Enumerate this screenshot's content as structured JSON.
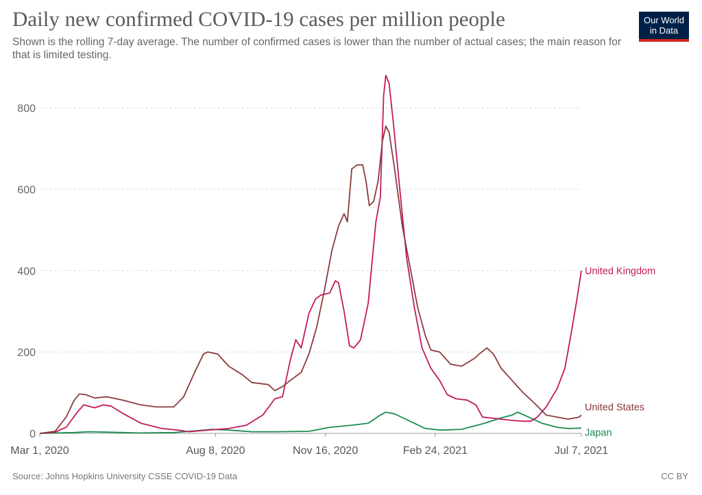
{
  "header": {
    "title": "Daily new confirmed COVID-19 cases per million people",
    "subtitle": "Shown is the rolling 7-day average. The number of confirmed cases is lower than the number of actual cases; the main reason for that is limited testing."
  },
  "logo": {
    "line1": "Our World",
    "line2": "in Data"
  },
  "footer": {
    "source": "Source: Johns Hopkins University CSSE COVID-19 Data",
    "license": "CC BY"
  },
  "chart_data": {
    "type": "line",
    "title": "Daily new confirmed COVID-19 cases per million people",
    "xlabel": "",
    "ylabel": "",
    "xlim": [
      "2020-03-01",
      "2021-07-07"
    ],
    "ylim": [
      0,
      880
    ],
    "y_ticks": [
      0,
      200,
      400,
      600,
      800
    ],
    "x_ticks": [
      "2020-03-01",
      "2020-08-08",
      "2020-11-16",
      "2021-02-24",
      "2021-07-07"
    ],
    "x_tick_labels": [
      "Mar 1, 2020",
      "Aug 8, 2020",
      "Nov 16, 2020",
      "Feb 24, 2021",
      "Jul 7, 2021"
    ],
    "grid": "horizontal dashed",
    "legend": "labels at line ends",
    "series": [
      {
        "name": "United Kingdom",
        "color": "#c2185b",
        "points": [
          [
            "2020-03-01",
            0
          ],
          [
            "2020-03-15",
            3
          ],
          [
            "2020-03-25",
            15
          ],
          [
            "2020-04-05",
            55
          ],
          [
            "2020-04-10",
            70
          ],
          [
            "2020-04-20",
            63
          ],
          [
            "2020-04-28",
            70
          ],
          [
            "2020-05-05",
            67
          ],
          [
            "2020-05-15",
            50
          ],
          [
            "2020-06-01",
            25
          ],
          [
            "2020-06-20",
            12
          ],
          [
            "2020-07-05",
            8
          ],
          [
            "2020-07-15",
            4
          ],
          [
            "2020-08-01",
            8
          ],
          [
            "2020-08-20",
            12
          ],
          [
            "2020-09-05",
            20
          ],
          [
            "2020-09-20",
            45
          ],
          [
            "2020-10-01",
            85
          ],
          [
            "2020-10-08",
            90
          ],
          [
            "2020-10-15",
            180
          ],
          [
            "2020-10-20",
            230
          ],
          [
            "2020-10-25",
            210
          ],
          [
            "2020-11-01",
            295
          ],
          [
            "2020-11-07",
            330
          ],
          [
            "2020-11-12",
            340
          ],
          [
            "2020-11-20",
            345
          ],
          [
            "2020-11-25",
            375
          ],
          [
            "2020-11-28",
            370
          ],
          [
            "2020-12-03",
            300
          ],
          [
            "2020-12-08",
            215
          ],
          [
            "2020-12-12",
            210
          ],
          [
            "2020-12-18",
            230
          ],
          [
            "2020-12-25",
            320
          ],
          [
            "2021-01-01",
            520
          ],
          [
            "2021-01-05",
            580
          ],
          [
            "2021-01-08",
            830
          ],
          [
            "2021-01-10",
            880
          ],
          [
            "2021-01-13",
            860
          ],
          [
            "2021-01-17",
            760
          ],
          [
            "2021-01-22",
            620
          ],
          [
            "2021-01-29",
            430
          ],
          [
            "2021-02-05",
            310
          ],
          [
            "2021-02-12",
            210
          ],
          [
            "2021-02-20",
            160
          ],
          [
            "2021-02-28",
            130
          ],
          [
            "2021-03-07",
            95
          ],
          [
            "2021-03-15",
            85
          ],
          [
            "2021-03-25",
            82
          ],
          [
            "2021-04-02",
            70
          ],
          [
            "2021-04-08",
            40
          ],
          [
            "2021-04-15",
            38
          ],
          [
            "2021-04-25",
            35
          ],
          [
            "2021-05-05",
            32
          ],
          [
            "2021-05-15",
            30
          ],
          [
            "2021-05-22",
            30
          ],
          [
            "2021-05-28",
            40
          ],
          [
            "2021-06-05",
            65
          ],
          [
            "2021-06-15",
            110
          ],
          [
            "2021-06-22",
            160
          ],
          [
            "2021-06-28",
            250
          ],
          [
            "2021-07-03",
            330
          ],
          [
            "2021-07-07",
            400
          ]
        ]
      },
      {
        "name": "United States",
        "color": "#8b3a3a",
        "points": [
          [
            "2020-03-01",
            0
          ],
          [
            "2020-03-15",
            5
          ],
          [
            "2020-03-25",
            40
          ],
          [
            "2020-04-01",
            80
          ],
          [
            "2020-04-06",
            97
          ],
          [
            "2020-04-12",
            95
          ],
          [
            "2020-04-20",
            87
          ],
          [
            "2020-05-01",
            90
          ],
          [
            "2020-05-15",
            82
          ],
          [
            "2020-06-01",
            70
          ],
          [
            "2020-06-15",
            65
          ],
          [
            "2020-07-01",
            65
          ],
          [
            "2020-07-10",
            90
          ],
          [
            "2020-07-20",
            150
          ],
          [
            "2020-07-28",
            195
          ],
          [
            "2020-08-01",
            200
          ],
          [
            "2020-08-10",
            195
          ],
          [
            "2020-08-20",
            165
          ],
          [
            "2020-09-01",
            145
          ],
          [
            "2020-09-10",
            125
          ],
          [
            "2020-09-25",
            120
          ],
          [
            "2020-10-01",
            105
          ],
          [
            "2020-10-08",
            115
          ],
          [
            "2020-10-15",
            130
          ],
          [
            "2020-10-25",
            150
          ],
          [
            "2020-11-01",
            195
          ],
          [
            "2020-11-08",
            260
          ],
          [
            "2020-11-15",
            350
          ],
          [
            "2020-11-22",
            450
          ],
          [
            "2020-11-28",
            510
          ],
          [
            "2020-12-03",
            540
          ],
          [
            "2020-12-06",
            520
          ],
          [
            "2020-12-10",
            650
          ],
          [
            "2020-12-15",
            660
          ],
          [
            "2020-12-20",
            660
          ],
          [
            "2020-12-23",
            620
          ],
          [
            "2020-12-26",
            560
          ],
          [
            "2020-12-30",
            570
          ],
          [
            "2021-01-03",
            620
          ],
          [
            "2021-01-07",
            720
          ],
          [
            "2021-01-10",
            755
          ],
          [
            "2021-01-13",
            740
          ],
          [
            "2021-01-18",
            650
          ],
          [
            "2021-01-25",
            510
          ],
          [
            "2021-02-01",
            410
          ],
          [
            "2021-02-08",
            310
          ],
          [
            "2021-02-15",
            240
          ],
          [
            "2021-02-20",
            205
          ],
          [
            "2021-02-28",
            200
          ],
          [
            "2021-03-10",
            170
          ],
          [
            "2021-03-20",
            165
          ],
          [
            "2021-04-01",
            185
          ],
          [
            "2021-04-05",
            195
          ],
          [
            "2021-04-12",
            210
          ],
          [
            "2021-04-18",
            195
          ],
          [
            "2021-04-25",
            160
          ],
          [
            "2021-05-05",
            130
          ],
          [
            "2021-05-15",
            100
          ],
          [
            "2021-05-25",
            75
          ],
          [
            "2021-06-05",
            45
          ],
          [
            "2021-06-15",
            40
          ],
          [
            "2021-06-25",
            35
          ],
          [
            "2021-07-05",
            40
          ],
          [
            "2021-07-07",
            45
          ]
        ]
      },
      {
        "name": "Japan",
        "color": "#1a8a50",
        "points": [
          [
            "2020-03-01",
            0
          ],
          [
            "2020-04-01",
            2
          ],
          [
            "2020-04-15",
            4
          ],
          [
            "2020-05-01",
            3
          ],
          [
            "2020-06-01",
            1
          ],
          [
            "2020-07-01",
            2
          ],
          [
            "2020-07-20",
            6
          ],
          [
            "2020-08-05",
            10
          ],
          [
            "2020-08-20",
            8
          ],
          [
            "2020-09-10",
            4
          ],
          [
            "2020-10-01",
            4
          ],
          [
            "2020-11-01",
            5
          ],
          [
            "2020-11-20",
            15
          ],
          [
            "2020-12-10",
            20
          ],
          [
            "2020-12-25",
            25
          ],
          [
            "2021-01-05",
            45
          ],
          [
            "2021-01-10",
            52
          ],
          [
            "2021-01-18",
            48
          ],
          [
            "2021-02-01",
            30
          ],
          [
            "2021-02-15",
            12
          ],
          [
            "2021-03-01",
            8
          ],
          [
            "2021-03-20",
            10
          ],
          [
            "2021-04-10",
            25
          ],
          [
            "2021-04-25",
            38
          ],
          [
            "2021-05-05",
            45
          ],
          [
            "2021-05-10",
            52
          ],
          [
            "2021-05-20",
            40
          ],
          [
            "2021-06-01",
            25
          ],
          [
            "2021-06-15",
            15
          ],
          [
            "2021-06-25",
            12
          ],
          [
            "2021-07-07",
            13
          ]
        ]
      }
    ]
  }
}
